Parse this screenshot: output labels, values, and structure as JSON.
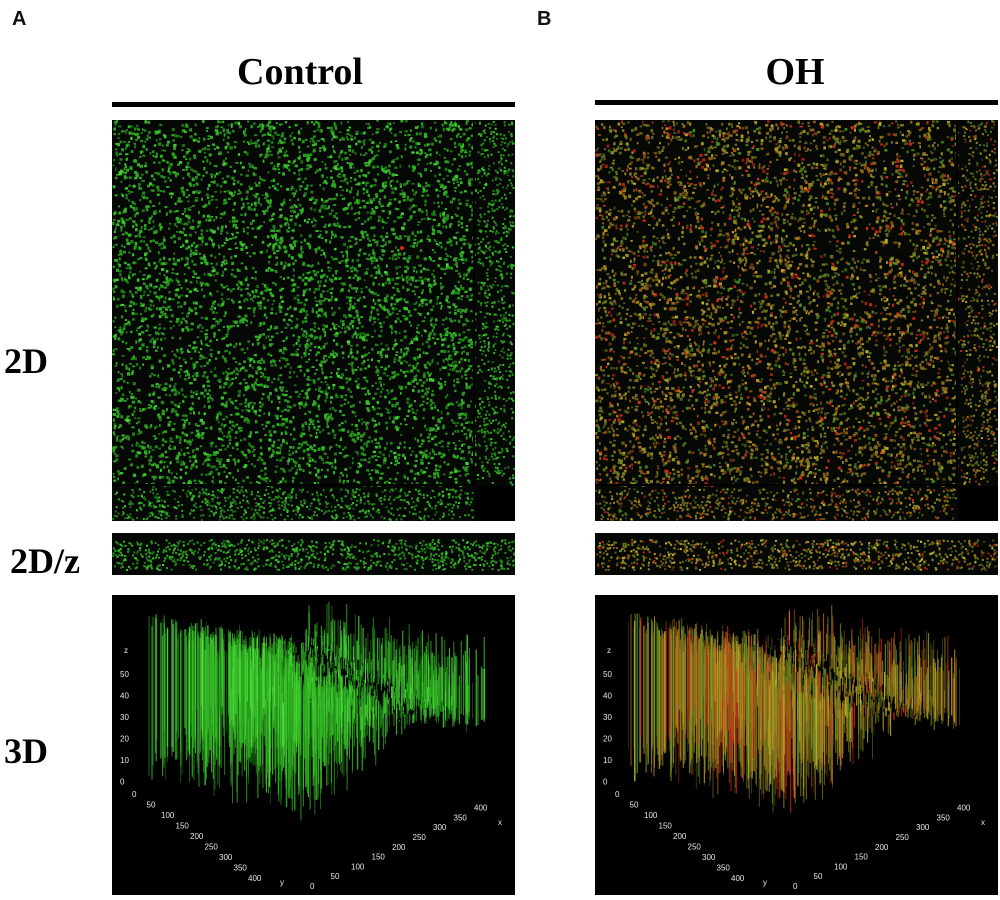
{
  "panels": [
    {
      "letter": "A",
      "title": "Control",
      "channel": "green"
    },
    {
      "letter": "B",
      "title": "OH",
      "channel": "yellow-red"
    }
  ],
  "row_labels": {
    "r2d": "2D",
    "r2dz": "2D/z",
    "r3d": "3D"
  },
  "axes3d": {
    "z_label": "z",
    "z_ticks": [
      "50",
      "40",
      "30",
      "20",
      "10",
      "0"
    ],
    "y_label": "y",
    "y_ticks": [
      "0",
      "50",
      "100",
      "150",
      "200",
      "250",
      "300",
      "350",
      "400"
    ],
    "x_label": "x",
    "x_ticks": [
      "0",
      "50",
      "100",
      "150",
      "200",
      "250",
      "300",
      "350",
      "400"
    ]
  },
  "colors": {
    "green": "#37c928",
    "red": "#d8281a",
    "yellow": "#b9b12a",
    "background": "#050805"
  }
}
